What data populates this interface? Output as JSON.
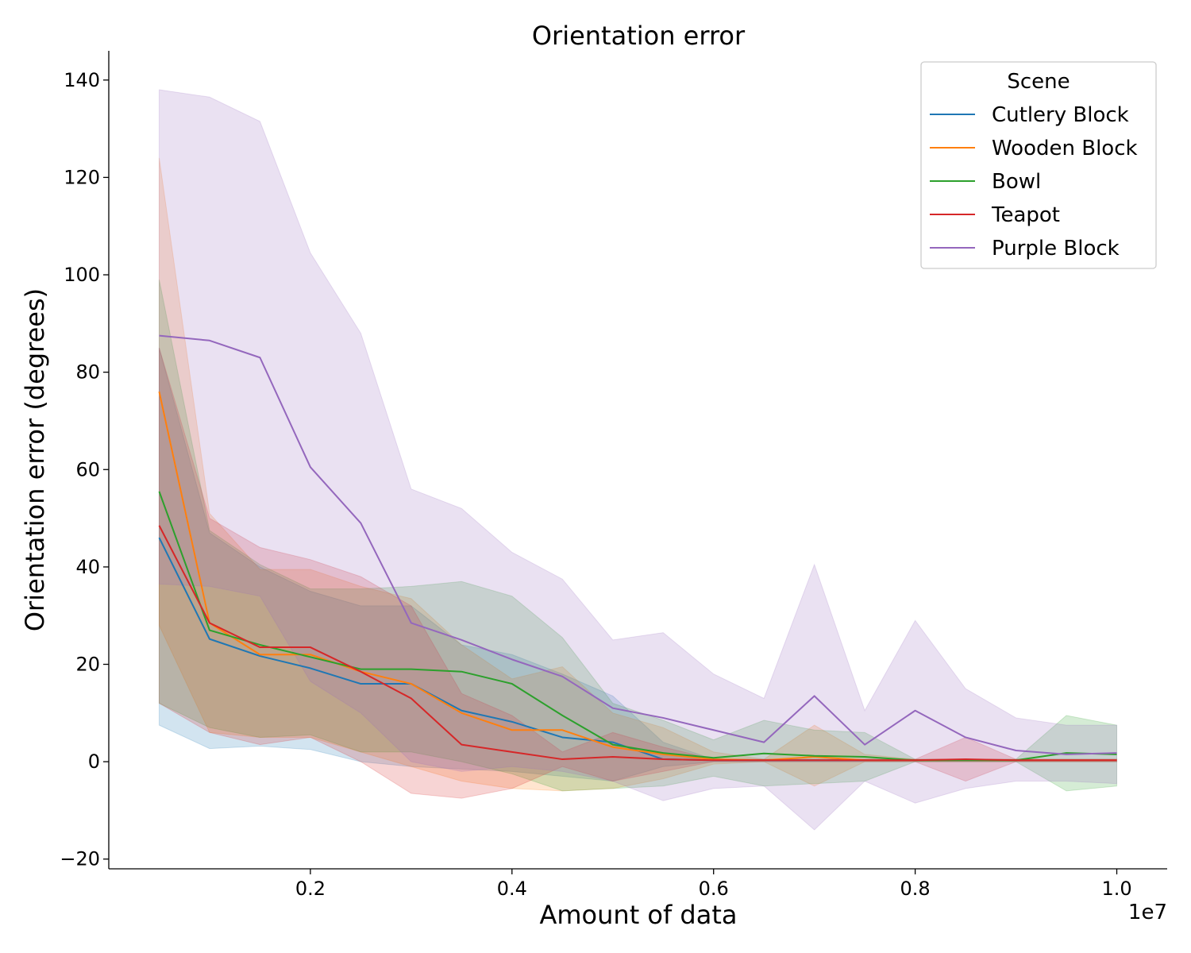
{
  "chart_data": {
    "type": "line",
    "title": "Orientation error",
    "xlabel": "Amount of data",
    "ylabel": "Orientation error (degrees)",
    "x_offset_label": "1e7",
    "xlim": [
      0.0,
      1.05
    ],
    "ylim": [
      -22,
      146
    ],
    "x_ticks": [
      0.2,
      0.4,
      0.6,
      0.8,
      1.0
    ],
    "x_tick_labels": [
      "0.2",
      "0.4",
      "0.6",
      "0.8",
      "1.0"
    ],
    "y_ticks": [
      -20,
      0,
      20,
      40,
      60,
      80,
      100,
      120,
      140
    ],
    "y_tick_labels": [
      "−20",
      "0",
      "20",
      "40",
      "60",
      "80",
      "100",
      "120",
      "140"
    ],
    "grid": false,
    "legend": {
      "title": "Scene",
      "placement": "top-right"
    },
    "x": [
      0.05,
      0.1,
      0.15,
      0.2,
      0.25,
      0.3,
      0.35,
      0.4,
      0.45,
      0.5,
      0.55,
      0.6,
      0.65,
      0.7,
      0.75,
      0.8,
      0.85,
      0.9,
      0.95,
      1.0
    ],
    "series": [
      {
        "name": "Cutlery Block",
        "color": "#1f77b4",
        "values": [
          46,
          25.2,
          21.7,
          19.2,
          16,
          16,
          10.5,
          8.2,
          5,
          4,
          0.5,
          0.3,
          0.3,
          0.3,
          0.3,
          0.3,
          0.3,
          0.3,
          0.3,
          0.3
        ],
        "upper": [
          85,
          47,
          40,
          35,
          32,
          32,
          24,
          22,
          18,
          13.5,
          4,
          0.5,
          0.5,
          0.5,
          0.5,
          0.5,
          0.5,
          0.5,
          0.5,
          0.5
        ],
        "lower": [
          7.5,
          2.7,
          3.2,
          2.5,
          0,
          -1,
          -1.5,
          -2,
          -3,
          -4,
          -1,
          0,
          0,
          0,
          0,
          0,
          0,
          0,
          0,
          0
        ]
      },
      {
        "name": "Wooden Block",
        "color": "#ff7f0e",
        "values": [
          76,
          28.5,
          22,
          22,
          18.5,
          16,
          10,
          6.5,
          6.5,
          3,
          1.5,
          0.5,
          0.3,
          1,
          0.3,
          0.3,
          0.3,
          0.3,
          0.3,
          0.3
        ],
        "upper": [
          124,
          51,
          39.5,
          39.5,
          36,
          33.5,
          24,
          17,
          19.5,
          10,
          7,
          2,
          0.5,
          7.5,
          1.5,
          0.5,
          0.5,
          0.5,
          0.5,
          0.5
        ],
        "lower": [
          28,
          6,
          5,
          5,
          2,
          -1,
          -4,
          -5.5,
          -6,
          -5.5,
          -3.5,
          -0.5,
          0,
          -5,
          0,
          0,
          0,
          0,
          0,
          0
        ]
      },
      {
        "name": "Bowl",
        "color": "#2ca02c",
        "values": [
          55.5,
          27,
          24,
          21.5,
          19,
          19,
          18.5,
          16,
          9.5,
          3.5,
          1.8,
          0.8,
          1.7,
          1.2,
          1,
          0.3,
          0.3,
          0.3,
          1.8,
          1.5
        ],
        "upper": [
          99,
          47.5,
          40.5,
          35.5,
          35.5,
          36,
          37,
          34,
          25.5,
          12,
          8.5,
          4.5,
          8.5,
          6.5,
          6,
          0.5,
          0.5,
          0.5,
          9.5,
          7.5
        ],
        "lower": [
          12,
          7,
          5,
          5.5,
          2,
          2,
          0,
          -2.5,
          -6,
          -5.5,
          -5,
          -3,
          -5,
          -4.5,
          -4,
          0,
          0,
          0,
          -6,
          -5
        ]
      },
      {
        "name": "Teapot",
        "color": "#d62728",
        "values": [
          48.5,
          28.5,
          23.5,
          23.5,
          18.5,
          13,
          3.5,
          2,
          0.5,
          1,
          0.5,
          0.3,
          0.3,
          0.3,
          0.3,
          0.3,
          0.5,
          0.3,
          0.3,
          0.3
        ],
        "upper": [
          85,
          50,
          44,
          41.5,
          38,
          32,
          14,
          9.5,
          2,
          6,
          3,
          0.5,
          0.5,
          0.5,
          0.5,
          0.5,
          5,
          0.5,
          0.5,
          0.5
        ],
        "lower": [
          12,
          6,
          3.5,
          5,
          0,
          -6.5,
          -7.5,
          -5.5,
          -1,
          -4,
          -2,
          0,
          0,
          0,
          0,
          0,
          -4,
          0,
          0,
          0
        ]
      },
      {
        "name": "Purple Block",
        "color": "#9467bd",
        "values": [
          87.5,
          86.5,
          83,
          60.5,
          49,
          28.5,
          25,
          21,
          17.5,
          11,
          9,
          6.5,
          4,
          13.5,
          3.5,
          10.5,
          5,
          2.3,
          1.5,
          1.8
        ],
        "upper": [
          138,
          136.5,
          131.5,
          104.5,
          88,
          56,
          52,
          43,
          37.5,
          25,
          26.5,
          18,
          13,
          40.5,
          10.5,
          29,
          15,
          9,
          7.5,
          7.5
        ],
        "lower": [
          36.5,
          36,
          34,
          16.5,
          10,
          0,
          -2,
          -1,
          -2,
          -4,
          -8,
          -5.5,
          -5,
          -14,
          -4,
          -8.5,
          -5.5,
          -4,
          -4,
          -4.5
        ]
      }
    ]
  }
}
